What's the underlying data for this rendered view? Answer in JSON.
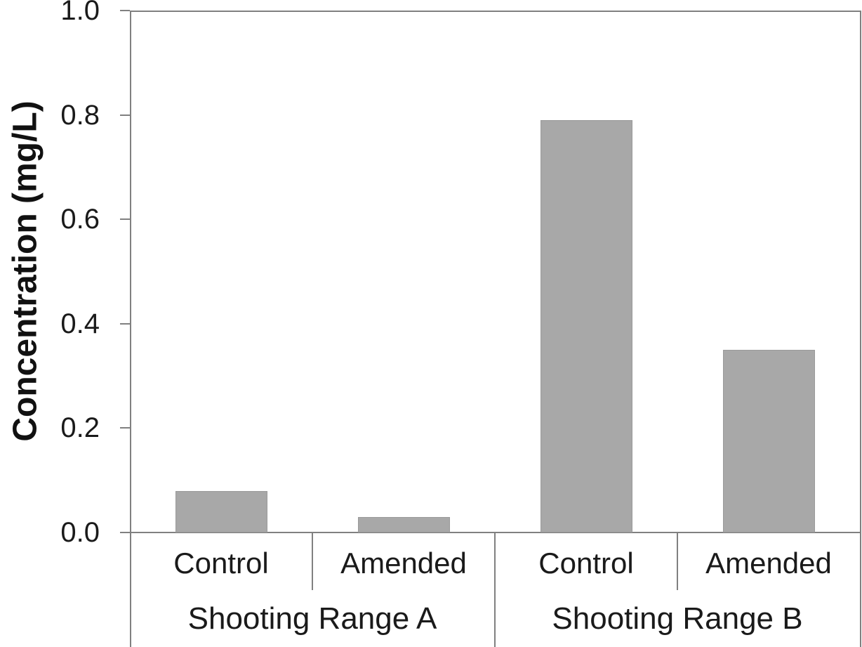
{
  "chart_data": {
    "type": "bar",
    "title": "",
    "ylabel": "Concentration (mg/L)",
    "xlabel": "",
    "ylim": [
      0,
      1.0
    ],
    "yticks": [
      0.0,
      0.2,
      0.4,
      0.6,
      0.8,
      1.0
    ],
    "ytick_labels": [
      "0.0",
      "0.2",
      "0.4",
      "0.6",
      "0.8",
      "1.0"
    ],
    "grid": false,
    "legend_position": "none",
    "bar_color": "#a8a8a8",
    "bar_border_color": "#9a9a9a",
    "axis_color": "#808080",
    "text_color": "#1a1a1a",
    "groups": [
      {
        "label": "Shooting Range A",
        "categories": [
          "Control",
          "Amended"
        ],
        "values": [
          0.08,
          0.03
        ]
      },
      {
        "label": "Shooting Range B",
        "categories": [
          "Control",
          "Amended"
        ],
        "values": [
          0.79,
          0.35
        ]
      }
    ]
  }
}
